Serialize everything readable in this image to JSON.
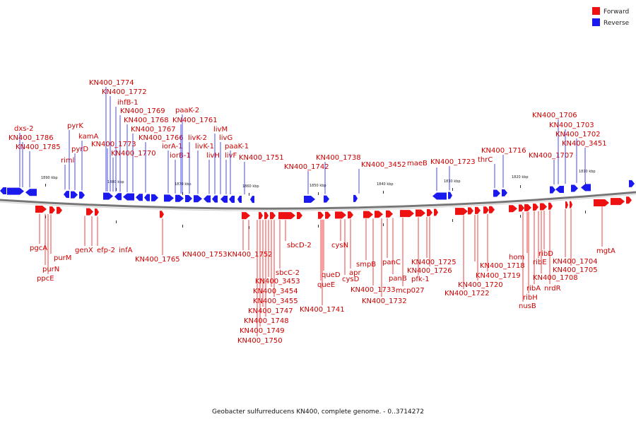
{
  "legend": {
    "items": [
      {
        "label": "Forward",
        "color": "#ee1111"
      },
      {
        "label": "Reverse",
        "color": "#1a1aee"
      }
    ]
  },
  "caption": "Geobacter sulfurreducens KN400, complete genome. - 0..3714272",
  "colors": {
    "forward_label": "#cc0000",
    "reverse_label": "#1a1aaa",
    "backbone": "#777777"
  },
  "ticks": [
    "1890 kbp",
    "1880 kbp",
    "1870 kbp",
    "1860 kbp",
    "1850 kbp",
    "1840 kbp",
    "1830 kbp",
    "1820 kbp",
    "1810 kbp"
  ],
  "reverse_genes": [
    "dxs-2",
    "KN400_1786",
    "KN400_1785",
    "riml",
    "pyrK",
    "pyrD",
    "kamA",
    "KN400_1774",
    "KN400_1772",
    "ihfB-1",
    "KN400_1769",
    "KN400_1768",
    "KN400_1767",
    "KN400_1773",
    "KN400_1770",
    "KN400_1766",
    "iorA-1",
    "iorB-1",
    "paaK-2",
    "KN400_1761",
    "livK-2",
    "livK-1",
    "livH",
    "livM",
    "livG",
    "livF",
    "paaK-1",
    "KN400_1751",
    "KN400_1742",
    "KN400_1738",
    "KN400_3452",
    "maeB",
    "KN400_1723",
    "thrC",
    "KN400_1716",
    "KN400_1707",
    "KN400_1706",
    "KN400_1703",
    "KN400_1702",
    "KN400_3451"
  ],
  "forward_genes": [
    "pgcA",
    "purN",
    "ppcE",
    "purM",
    "genX",
    "efp-2",
    "infA",
    "KN400_1765",
    "KN400_1753",
    "KN400_1752",
    "sbcD-2",
    "sbcC-2",
    "KN400_3453",
    "KN400_3454",
    "KN400_3455",
    "KN400_1747",
    "KN400_1748",
    "KN400_1749",
    "KN400_1750",
    "queD",
    "queE",
    "KN400_1741",
    "cysN",
    "cysD",
    "apr",
    "smpB",
    "KN400_1733",
    "KN400_1732",
    "panC",
    "panB",
    "mcp027",
    "pfk-1",
    "KN400_1725",
    "KN400_1726",
    "KN400_1722",
    "KN400_1718",
    "KN400_1719",
    "KN400_1720",
    "hom",
    "ribH",
    "nusB",
    "ribA",
    "ribE",
    "ribD",
    "KN400_1708",
    "nrdR",
    "KN400_1704",
    "KN400_1705",
    "mgtA"
  ]
}
